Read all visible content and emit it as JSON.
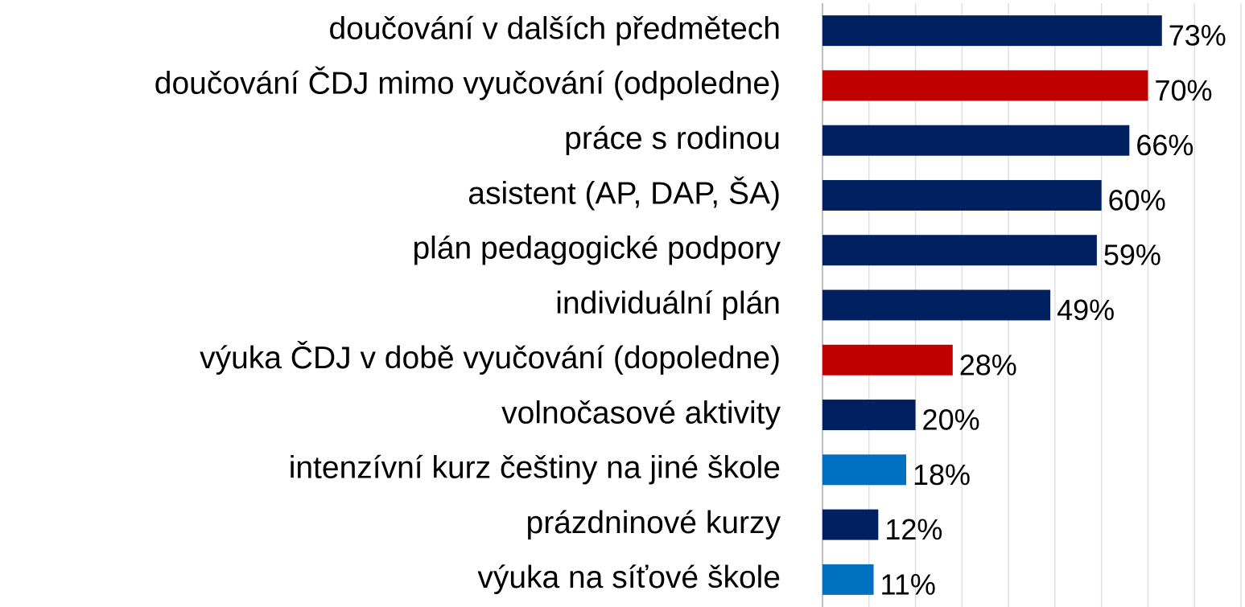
{
  "chart_data": {
    "type": "barh",
    "categories": [
      "doučování v dalších předmětech",
      "doučování ČDJ mimo vyučování (odpoledne)",
      "práce s rodinou",
      "asistent (AP, DAP, ŠA)",
      "plán pedagogické podpory",
      "individuální plán",
      "výuka ČDJ v době vyučování (dopoledne)",
      "volnočasové aktivity",
      "intenzívní kurz češtiny na jiné škole",
      "prázdninové kurzy",
      "výuka na síťové škole"
    ],
    "values": [
      73,
      70,
      66,
      60,
      59,
      49,
      28,
      20,
      18,
      12,
      11
    ],
    "value_labels": [
      "73%",
      "70%",
      "66%",
      "60%",
      "59%",
      "49%",
      "28%",
      "20%",
      "18%",
      "12%",
      "11%"
    ],
    "colors": [
      "#002060",
      "#c00000",
      "#002060",
      "#002060",
      "#002060",
      "#002060",
      "#c00000",
      "#002060",
      "#0070c0",
      "#002060",
      "#0070c0"
    ],
    "xlim": [
      0,
      90
    ],
    "xticks": [
      0,
      10,
      20,
      30,
      40,
      50,
      60,
      70,
      80,
      90
    ],
    "grid": true
  }
}
